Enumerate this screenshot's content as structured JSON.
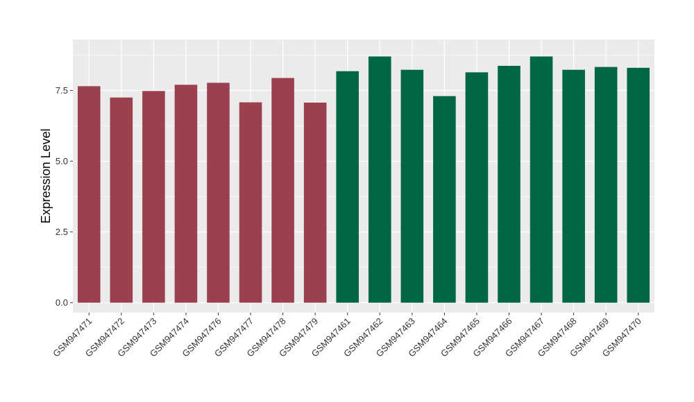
{
  "chart_data": {
    "type": "bar",
    "title": "",
    "xlabel": "",
    "ylabel": "Expression Level",
    "ylim": [
      -0.35,
      9.3
    ],
    "yticks": [
      0.0,
      2.5,
      5.0,
      7.5
    ],
    "ytick_labels": [
      "0.0",
      "2.5",
      "5.0",
      "7.5"
    ],
    "grid": true,
    "categories": [
      "GSM947471",
      "GSM947472",
      "GSM947473",
      "GSM947474",
      "GSM947476",
      "GSM947477",
      "GSM947478",
      "GSM947479",
      "GSM947461",
      "GSM947462",
      "GSM947463",
      "GSM947464",
      "GSM947465",
      "GSM947466",
      "GSM947467",
      "GSM947468",
      "GSM947469",
      "GSM947470"
    ],
    "values": [
      7.65,
      7.25,
      7.48,
      7.7,
      7.77,
      7.08,
      7.94,
      7.07,
      8.18,
      8.7,
      8.23,
      7.3,
      8.14,
      8.37,
      8.7,
      8.23,
      8.33,
      8.3
    ],
    "bar_colors": [
      "#9a404e",
      "#9a404e",
      "#9a404e",
      "#9a404e",
      "#9a404e",
      "#9a404e",
      "#9a404e",
      "#9a404e",
      "#006644",
      "#006644",
      "#006644",
      "#006644",
      "#006644",
      "#006644",
      "#006644",
      "#006644",
      "#006644",
      "#006644"
    ],
    "panel_background": "#ebebeb",
    "grid_color": "#ffffff"
  }
}
